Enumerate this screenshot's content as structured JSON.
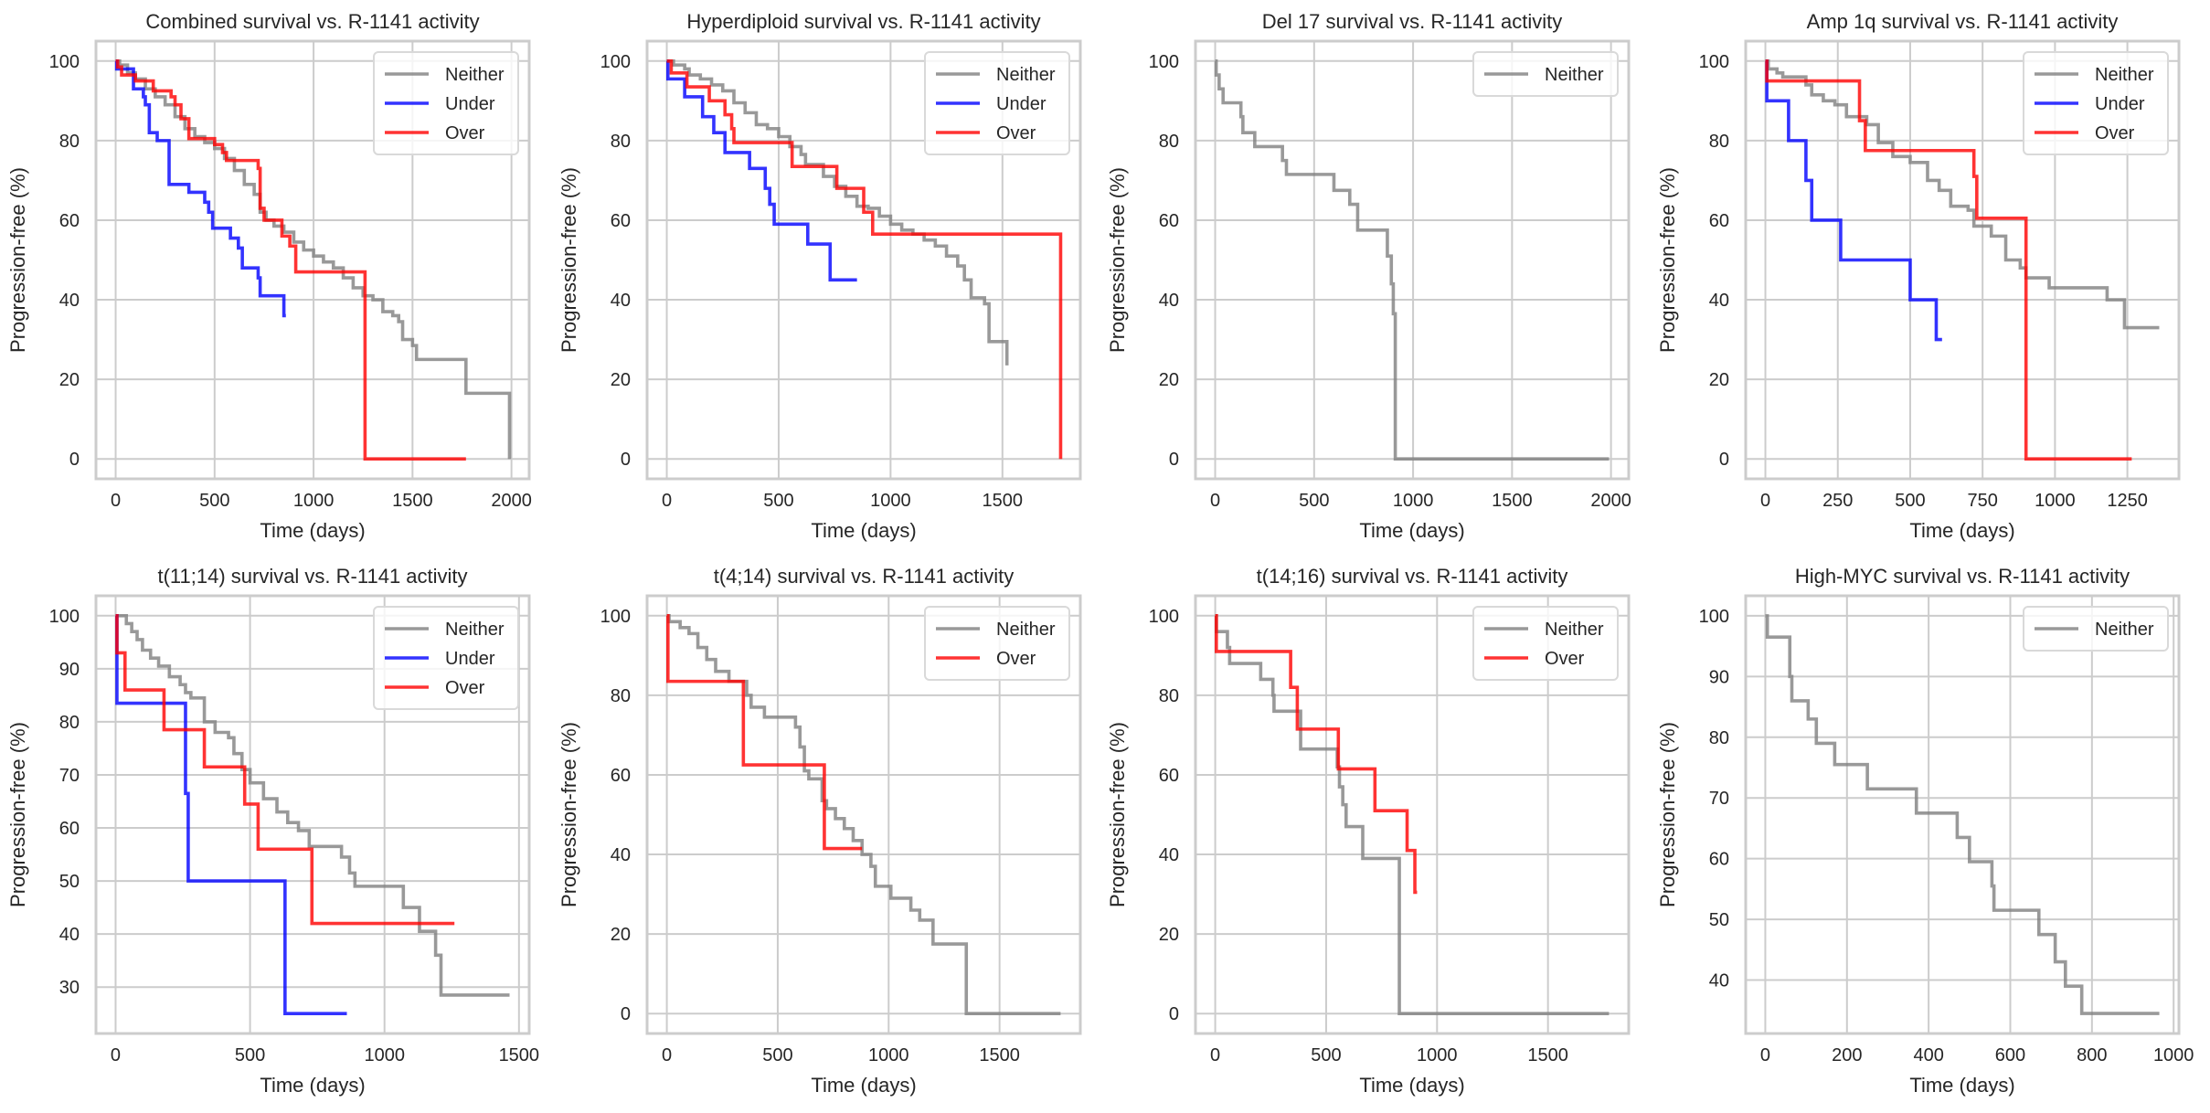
{
  "figure": {
    "series_colors": {
      "Neither": "#808080",
      "Under": "#0000ff",
      "Over": "#ff0000"
    }
  },
  "chart_data": [
    {
      "type": "line",
      "step": "post",
      "title": "Combined survival vs. R-1141 activity",
      "xlabel": "Time (days)",
      "ylabel": "Progression-free (%)",
      "xlim": [
        -99.5,
        2089.5
      ],
      "ylim": [
        -5,
        105
      ],
      "xticks": [
        0,
        500,
        1000,
        1500,
        2000
      ],
      "yticks": [
        0,
        20,
        40,
        60,
        80,
        100
      ],
      "grid": true,
      "legend": "top-right",
      "series": [
        {
          "name": "Neither",
          "x": [
            0,
            20,
            60,
            100,
            150,
            200,
            250,
            300,
            350,
            400,
            450,
            500,
            550,
            600,
            650,
            700,
            730,
            760,
            800,
            850,
            900,
            950,
            1000,
            1050,
            1100,
            1150,
            1200,
            1250,
            1300,
            1350,
            1400,
            1430,
            1450,
            1500,
            1520,
            1770,
            1990
          ],
          "y": [
            100,
            99,
            97,
            95.5,
            93,
            91,
            89,
            86,
            83,
            81,
            79.5,
            78,
            75.5,
            72.5,
            69,
            66.5,
            62,
            60,
            58.5,
            57,
            54.5,
            52.5,
            51,
            49.5,
            48,
            45.5,
            43,
            41,
            40,
            37,
            36,
            34.5,
            30,
            28.5,
            25,
            16.5,
            0
          ]
        },
        {
          "name": "Under",
          "x": [
            0,
            5,
            80,
            90,
            140,
            150,
            170,
            210,
            260,
            270,
            370,
            450,
            470,
            490,
            580,
            620,
            640,
            700,
            720,
            730,
            850,
            860
          ],
          "y": [
            100,
            98,
            98,
            93,
            91,
            89,
            82,
            80,
            80,
            69,
            67,
            64.5,
            62,
            58,
            55.5,
            53,
            48,
            48,
            45.5,
            41,
            36,
            36
          ]
        },
        {
          "name": "Over",
          "x": [
            0,
            10,
            30,
            100,
            190,
            280,
            300,
            330,
            370,
            400,
            500,
            540,
            560,
            700,
            720,
            730,
            750,
            840,
            880,
            910,
            1260,
            1770
          ],
          "y": [
            100,
            98.5,
            96.5,
            95,
            92.5,
            91,
            89,
            85.5,
            80.5,
            80.5,
            79,
            77,
            75,
            75,
            73,
            63,
            60,
            56,
            53.5,
            47,
            0,
            0
          ]
        }
      ]
    },
    {
      "type": "line",
      "step": "post",
      "title": "Hyperdiploid survival vs. R-1141 activity",
      "xlabel": "Time (days)",
      "ylabel": "Progression-free (%)",
      "xlim": [
        -88,
        1848
      ],
      "ylim": [
        -5,
        105
      ],
      "xticks": [
        0,
        500,
        1000,
        1500
      ],
      "yticks": [
        0,
        20,
        40,
        60,
        80,
        100
      ],
      "grid": true,
      "legend": "top-right",
      "series": [
        {
          "name": "Neither",
          "x": [
            0,
            30,
            80,
            100,
            150,
            200,
            250,
            300,
            350,
            400,
            450,
            500,
            550,
            600,
            620,
            700,
            750,
            800,
            850,
            900,
            950,
            1000,
            1050,
            1100,
            1150,
            1200,
            1250,
            1300,
            1330,
            1360,
            1420,
            1440,
            1510,
            1520
          ],
          "y": [
            100,
            99,
            98,
            96.5,
            95.5,
            94,
            92.5,
            89.5,
            87,
            84,
            83,
            81,
            78.5,
            76.5,
            74,
            71,
            68.5,
            66,
            63.5,
            63,
            61,
            59,
            57.5,
            56.5,
            55,
            53.5,
            51,
            48.5,
            45,
            40.5,
            39,
            29.5,
            29.5,
            23.5
          ]
        },
        {
          "name": "Under",
          "x": [
            0,
            5,
            80,
            160,
            210,
            260,
            370,
            440,
            460,
            480,
            630,
            730,
            850
          ],
          "y": [
            100,
            95.5,
            91,
            86,
            82,
            77,
            73,
            68,
            64,
            59,
            54,
            45,
            45
          ]
        },
        {
          "name": "Over",
          "x": [
            0,
            20,
            90,
            190,
            260,
            290,
            300,
            560,
            580,
            760,
            880,
            920,
            1760
          ],
          "y": [
            100,
            97,
            93.5,
            90,
            86.5,
            83,
            79.5,
            73.5,
            73.5,
            68,
            62,
            56.5,
            0
          ]
        }
      ]
    },
    {
      "type": "line",
      "step": "post",
      "title": "Del 17 survival vs. R-1141 activity",
      "xlabel": "Time (days)",
      "ylabel": "Progression-free (%)",
      "xlim": [
        -99.5,
        2089.5
      ],
      "ylim": [
        -5,
        105
      ],
      "xticks": [
        0,
        500,
        1000,
        1500,
        2000
      ],
      "yticks": [
        0,
        20,
        40,
        60,
        80,
        100
      ],
      "grid": true,
      "legend": "top-right",
      "series": [
        {
          "name": "Neither",
          "x": [
            0,
            5,
            20,
            40,
            130,
            140,
            200,
            340,
            360,
            600,
            680,
            720,
            870,
            890,
            900,
            910,
            1990
          ],
          "y": [
            100,
            96.5,
            93,
            89.5,
            86,
            82,
            78.5,
            75,
            71.5,
            67.5,
            64,
            57.5,
            51,
            44,
            36.5,
            0,
            0
          ]
        }
      ]
    },
    {
      "type": "line",
      "step": "post",
      "title": "Amp 1q survival vs. R-1141 activity",
      "xlabel": "Time (days)",
      "ylabel": "Progression-free (%)",
      "xlim": [
        -68,
        1428
      ],
      "ylim": [
        -5,
        105
      ],
      "xticks": [
        0,
        250,
        500,
        750,
        1000,
        1250
      ],
      "yticks": [
        0,
        20,
        40,
        60,
        80,
        100
      ],
      "grid": true,
      "legend": "top-right",
      "series": [
        {
          "name": "Neither",
          "x": [
            0,
            10,
            40,
            60,
            140,
            160,
            200,
            240,
            280,
            350,
            390,
            440,
            500,
            560,
            600,
            640,
            700,
            720,
            780,
            830,
            880,
            900,
            980,
            1180,
            1240,
            1360
          ],
          "y": [
            100,
            98,
            97,
            96,
            94,
            91.5,
            90,
            89,
            86,
            84,
            79.5,
            76,
            74.5,
            70,
            67.5,
            63.5,
            62.5,
            58.5,
            56,
            50,
            48,
            45.5,
            43,
            40,
            33,
            33
          ]
        },
        {
          "name": "Under",
          "x": [
            0,
            5,
            80,
            140,
            160,
            260,
            500,
            590,
            610
          ],
          "y": [
            100,
            90,
            80,
            70,
            60,
            50,
            40,
            30,
            30
          ]
        },
        {
          "name": "Over",
          "x": [
            0,
            5,
            325,
            345,
            720,
            730,
            900,
            1265
          ],
          "y": [
            100,
            95,
            85,
            77.5,
            71,
            60.5,
            0,
            0
          ]
        }
      ]
    },
    {
      "type": "line",
      "step": "post",
      "title": "t(11;14) survival vs. R-1141 activity",
      "xlabel": "Time (days)",
      "ylabel": "Progression-free (%)",
      "xlim": [
        -73,
        1538
      ],
      "ylim": [
        21.25,
        103.75
      ],
      "xticks": [
        0,
        500,
        1000,
        1500
      ],
      "yticks": [
        30,
        40,
        50,
        60,
        70,
        80,
        90
      ],
      "yticks_extra": [
        100
      ],
      "grid": true,
      "legend": "top-right",
      "series": [
        {
          "name": "Neither",
          "x": [
            0,
            40,
            60,
            80,
            100,
            130,
            160,
            200,
            240,
            260,
            280,
            330,
            370,
            420,
            440,
            470,
            500,
            550,
            600,
            640,
            680,
            720,
            840,
            870,
            890,
            1070,
            1130,
            1190,
            1210,
            1465
          ],
          "y": [
            100,
            98.5,
            97,
            95.5,
            93.5,
            92,
            90.5,
            88.5,
            87,
            85.5,
            84.5,
            80,
            78,
            77,
            74,
            71,
            68.5,
            65.5,
            63,
            61,
            59.5,
            56.5,
            54.5,
            51.5,
            49,
            45,
            40.5,
            36,
            28.5,
            28.5
          ]
        },
        {
          "name": "Under",
          "x": [
            0,
            5,
            260,
            270,
            630,
            860
          ],
          "y": [
            100,
            83.5,
            66.5,
            50,
            25,
            25
          ]
        },
        {
          "name": "Over",
          "x": [
            0,
            5,
            35,
            180,
            330,
            480,
            530,
            730,
            1260
          ],
          "y": [
            100,
            93,
            86,
            78.5,
            71.5,
            64.5,
            56,
            42,
            42
          ]
        }
      ]
    },
    {
      "type": "line",
      "step": "post",
      "title": "t(4;14) survival vs. R-1141 activity",
      "xlabel": "Time (days)",
      "ylabel": "Progression-free (%)",
      "xlim": [
        -89,
        1864
      ],
      "ylim": [
        -5,
        105
      ],
      "xticks": [
        0,
        500,
        1000,
        1500
      ],
      "yticks": [
        0,
        20,
        40,
        60,
        80,
        100
      ],
      "grid": true,
      "legend": "top-right",
      "series": [
        {
          "name": "Neither",
          "x": [
            0,
            10,
            60,
            100,
            140,
            180,
            220,
            280,
            360,
            380,
            440,
            580,
            600,
            620,
            640,
            700,
            720,
            760,
            800,
            840,
            880,
            920,
            940,
            1010,
            1100,
            1140,
            1200,
            1350,
            1775
          ],
          "y": [
            100,
            98.5,
            97,
            95.5,
            92,
            89,
            86,
            83.5,
            80,
            77,
            74.5,
            72,
            67,
            61,
            59,
            53.5,
            51.5,
            49,
            46.5,
            43.5,
            40,
            37,
            32,
            29,
            26,
            23.5,
            17.5,
            0,
            0
          ]
        },
        {
          "name": "Over",
          "x": [
            0,
            5,
            345,
            710,
            880
          ],
          "y": [
            100,
            83.5,
            62.5,
            41.5,
            41.5
          ]
        }
      ]
    },
    {
      "type": "line",
      "step": "post",
      "title": "t(14;16) survival vs. R-1141 activity",
      "xlabel": "Time (days)",
      "ylabel": "Progression-free (%)",
      "xlim": [
        -89,
        1864
      ],
      "ylim": [
        -5,
        105
      ],
      "xticks": [
        0,
        500,
        1000,
        1500
      ],
      "yticks": [
        0,
        20,
        40,
        60,
        80,
        100
      ],
      "grid": true,
      "legend": "top-right",
      "series": [
        {
          "name": "Neither",
          "x": [
            0,
            5,
            55,
            65,
            205,
            260,
            265,
            385,
            550,
            560,
            575,
            590,
            665,
            830,
            1775
          ],
          "y": [
            100,
            96,
            92,
            88,
            84,
            80,
            76,
            66.5,
            62,
            57,
            52.5,
            47,
            39,
            0,
            0
          ]
        },
        {
          "name": "Over",
          "x": [
            0,
            5,
            340,
            370,
            555,
            720,
            865,
            900,
            910
          ],
          "y": [
            100,
            91,
            82,
            71.5,
            61.5,
            51,
            41,
            30.5,
            30.5
          ]
        }
      ]
    },
    {
      "type": "line",
      "step": "post",
      "title": "High-MYC survival vs. R-1141 activity",
      "xlabel": "Time (days)",
      "ylabel": "Progression-free (%)",
      "xlim": [
        -48,
        1013
      ],
      "ylim": [
        31.2,
        103.3
      ],
      "xticks": [
        0,
        200,
        400,
        600,
        800,
        1000
      ],
      "yticks": [
        40,
        50,
        60,
        70,
        80,
        90,
        100
      ],
      "grid": true,
      "legend": "top-right",
      "series": [
        {
          "name": "Neither",
          "x": [
            0,
            5,
            60,
            65,
            105,
            125,
            170,
            250,
            370,
            470,
            500,
            555,
            560,
            670,
            710,
            735,
            775,
            965
          ],
          "y": [
            100,
            96.5,
            90,
            86,
            83,
            79,
            75.5,
            71.5,
            67.5,
            63.5,
            59.5,
            55.5,
            51.5,
            47.5,
            43,
            39,
            34.5,
            34.5
          ]
        }
      ]
    }
  ]
}
